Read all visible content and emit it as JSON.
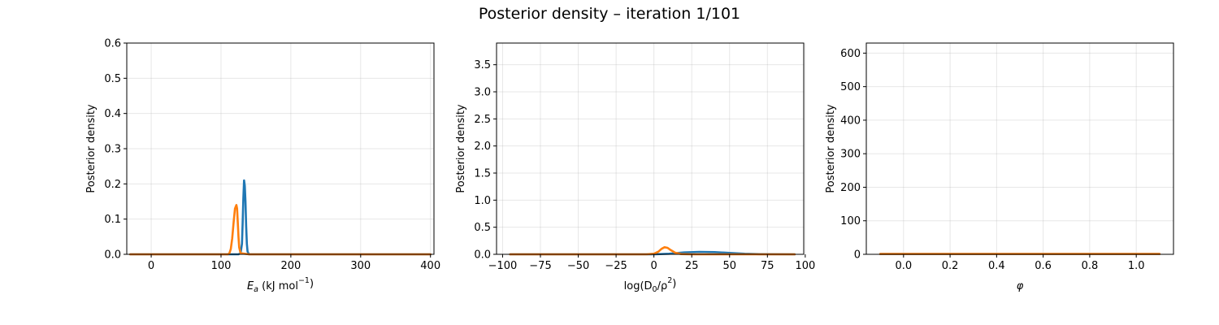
{
  "figure": {
    "title": "Posterior density – iteration 1/101"
  },
  "colors": {
    "series_1": "#1f77b4",
    "series_2": "#ff7f0e",
    "grid": "#b0b0b0",
    "axis": "#000000"
  },
  "chart_data": [
    {
      "type": "line",
      "ylabel": "Posterior density",
      "xlabel_parts": [
        "E",
        "a",
        " (kJ mol",
        "−1",
        ")"
      ],
      "xlim": [
        -35,
        405
      ],
      "ylim": [
        0,
        0.6
      ],
      "x_ticks": [
        0,
        100,
        200,
        300,
        400
      ],
      "x_tick_labels": [
        "0",
        "100",
        "200",
        "300",
        "400"
      ],
      "y_ticks": [
        0.0,
        0.1,
        0.2,
        0.3,
        0.4,
        0.5,
        0.6
      ],
      "y_tick_labels": [
        "0.0",
        "0.1",
        "0.2",
        "0.3",
        "0.4",
        "0.5",
        "0.6"
      ],
      "grid": true,
      "series": [
        {
          "color": "#1f77b4",
          "x": [
            -30,
            100,
            125,
            128,
            130,
            131,
            132,
            133,
            134,
            135,
            136,
            137,
            138,
            140,
            400
          ],
          "y": [
            0,
            0,
            0,
            0.003,
            0.03,
            0.09,
            0.16,
            0.21,
            0.195,
            0.15,
            0.08,
            0.03,
            0.008,
            0,
            0
          ]
        },
        {
          "color": "#ff7f0e",
          "x": [
            -30,
            100,
            110,
            112,
            114,
            116,
            118,
            120,
            122,
            123,
            124,
            125,
            126,
            128,
            140,
            400
          ],
          "y": [
            0,
            0,
            0,
            0.003,
            0.015,
            0.045,
            0.09,
            0.13,
            0.14,
            0.13,
            0.09,
            0.05,
            0.02,
            0.003,
            0,
            0
          ]
        }
      ]
    },
    {
      "type": "line",
      "ylabel": "Posterior density",
      "xlabel_parts": [
        "log(D",
        "0",
        "/ρ",
        "2",
        ")"
      ],
      "xlim": [
        -104,
        99
      ],
      "ylim": [
        0,
        3.9
      ],
      "x_ticks": [
        -100,
        -75,
        -50,
        -25,
        0,
        25,
        50,
        75,
        100
      ],
      "x_tick_labels": [
        "−100",
        "−75",
        "−50",
        "−25",
        "0",
        "25",
        "50",
        "75",
        "100"
      ],
      "y_ticks": [
        0.0,
        0.5,
        1.0,
        1.5,
        2.0,
        2.5,
        3.0,
        3.5
      ],
      "y_tick_labels": [
        "0.0",
        "0.5",
        "1.0",
        "1.5",
        "2.0",
        "2.5",
        "3.0",
        "3.5"
      ],
      "grid": true,
      "series": [
        {
          "color": "#1f77b4",
          "x": [
            -95,
            0,
            10,
            20,
            30,
            40,
            50,
            60,
            70,
            93
          ],
          "y": [
            0,
            0,
            0.01,
            0.035,
            0.045,
            0.04,
            0.025,
            0.01,
            0.003,
            0
          ]
        },
        {
          "color": "#ff7f0e",
          "x": [
            -95,
            -5,
            0,
            3,
            5,
            7,
            9,
            11,
            14,
            18,
            25,
            93
          ],
          "y": [
            0,
            0,
            0.01,
            0.05,
            0.1,
            0.13,
            0.12,
            0.08,
            0.03,
            0.005,
            0,
            0
          ]
        }
      ]
    },
    {
      "type": "line",
      "ylabel": "Posterior density",
      "xlabel_parts": [
        "φ"
      ],
      "xlim": [
        -0.16,
        1.16
      ],
      "ylim": [
        0,
        630
      ],
      "x_ticks": [
        0.0,
        0.2,
        0.4,
        0.6,
        0.8,
        1.0
      ],
      "x_tick_labels": [
        "0.0",
        "0.2",
        "0.4",
        "0.6",
        "0.8",
        "1.0"
      ],
      "y_ticks": [
        0,
        100,
        200,
        300,
        400,
        500,
        600
      ],
      "y_tick_labels": [
        "0",
        "100",
        "200",
        "300",
        "400",
        "500",
        "600"
      ],
      "grid": true,
      "series": [
        {
          "color": "#1f77b4",
          "x": [
            -0.1,
            0.0,
            0.5,
            1.0,
            1.1
          ],
          "y": [
            1.0,
            1.0,
            1.0,
            1.0,
            1.0
          ]
        },
        {
          "color": "#ff7f0e",
          "x": [
            -0.1,
            0.0,
            0.5,
            1.0,
            1.1
          ],
          "y": [
            1.0,
            1.0,
            1.0,
            1.0,
            1.0
          ]
        }
      ]
    }
  ]
}
